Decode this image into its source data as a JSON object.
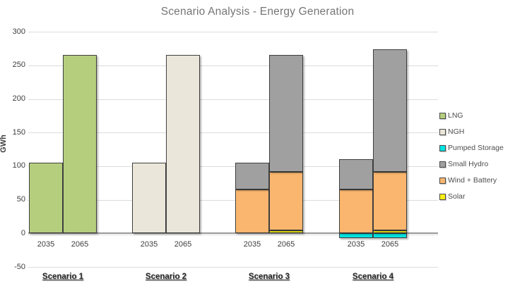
{
  "title": "Scenario Analysis - Energy Generation",
  "y_axis": {
    "label": "GWh",
    "ticks": [
      300,
      250,
      200,
      150,
      100,
      50,
      0,
      -50
    ]
  },
  "legend": {
    "position": "right",
    "items": [
      {
        "name": "LNG",
        "color": "#b5ce7d"
      },
      {
        "name": "NGH",
        "color": "#eae6d9"
      },
      {
        "name": "Pumped Storage",
        "color": "#00e3e3"
      },
      {
        "name": "Small Hydro",
        "color": "#9fa09f"
      },
      {
        "name": "Wind + Battery",
        "color": "#fab66e"
      },
      {
        "name": "Solar",
        "color": "#f9ef18"
      }
    ]
  },
  "chart_data": {
    "type": "bar",
    "stacked": true,
    "title": "Scenario Analysis - Energy Generation",
    "xlabel": "",
    "ylabel": "GWh",
    "ylim": [
      -50,
      300
    ],
    "grid": true,
    "legend_position": "right",
    "categories": [
      "2035",
      "2065"
    ],
    "series_colors": {
      "LNG": "#b5ce7d",
      "NGH": "#eae6d9",
      "Pumped Storage": "#00e3e3",
      "Small Hydro": "#9fa09f",
      "Wind + Battery": "#fab66e",
      "Solar": "#f9ef18"
    },
    "groups": [
      {
        "label": "Scenario 1",
        "bars": [
          {
            "year": "2035",
            "segments": [
              {
                "series": "LNG",
                "value": 105
              }
            ]
          },
          {
            "year": "2065",
            "segments": [
              {
                "series": "LNG",
                "value": 265
              }
            ]
          }
        ]
      },
      {
        "label": "Scenario 2",
        "bars": [
          {
            "year": "2035",
            "segments": [
              {
                "series": "NGH",
                "value": 105
              }
            ]
          },
          {
            "year": "2065",
            "segments": [
              {
                "series": "NGH",
                "value": 265
              }
            ]
          }
        ]
      },
      {
        "label": "Scenario 3",
        "bars": [
          {
            "year": "2035",
            "segments": [
              {
                "series": "Wind + Battery",
                "value": 65
              },
              {
                "series": "Small Hydro",
                "value": 40
              }
            ]
          },
          {
            "year": "2065",
            "segments": [
              {
                "series": "Solar",
                "value": 5
              },
              {
                "series": "Wind + Battery",
                "value": 86
              },
              {
                "series": "Small Hydro",
                "value": 174
              }
            ]
          }
        ]
      },
      {
        "label": "Scenario 4",
        "bars": [
          {
            "year": "2035",
            "segments": [
              {
                "series": "Pumped Storage",
                "value": -7
              },
              {
                "series": "Wind + Battery",
                "value": 65
              },
              {
                "series": "Small Hydro",
                "value": 45
              }
            ]
          },
          {
            "year": "2065",
            "segments": [
              {
                "series": "Pumped Storage",
                "value": -7
              },
              {
                "series": "Solar",
                "value": 5
              },
              {
                "series": "Wind + Battery",
                "value": 86
              },
              {
                "series": "Small Hydro",
                "value": 183
              }
            ]
          }
        ]
      }
    ]
  }
}
